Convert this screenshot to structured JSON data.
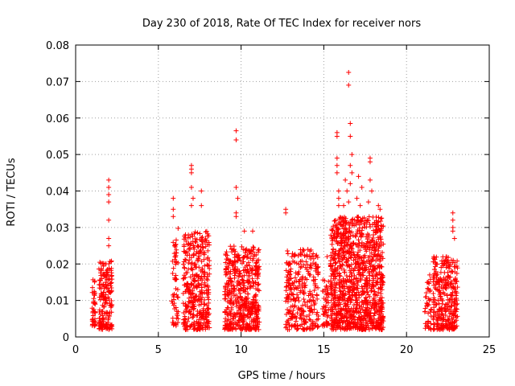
{
  "chart_data": {
    "type": "scatter",
    "title": "Day 230 of 2018, Rate Of TEC Index for receiver nors",
    "xlabel": "GPS time / hours",
    "ylabel": "ROTI / TECUs",
    "xlim": [
      0,
      25
    ],
    "ylim": [
      0,
      0.08
    ],
    "x_ticks": [
      0,
      5,
      10,
      15,
      20,
      25
    ],
    "x_tick_labels": [
      "0",
      "5",
      "10",
      "15",
      "20",
      "25"
    ],
    "y_ticks": [
      0,
      0.01,
      0.02,
      0.03,
      0.04,
      0.05,
      0.06,
      0.07,
      0.08
    ],
    "y_tick_labels": [
      "0",
      "0.01",
      "0.02",
      "0.03",
      "0.04",
      "0.05",
      "0.06",
      "0.07",
      "0.08"
    ],
    "grid": true,
    "legend": "none",
    "marker": "+",
    "color": "#ff0000",
    "clusters": [
      {
        "x_range": [
          1.0,
          1.2
        ],
        "y_range": [
          0.003,
          0.016
        ],
        "count": 40
      },
      {
        "x_range": [
          1.4,
          2.2
        ],
        "y_range": [
          0.002,
          0.021
        ],
        "count": 180
      },
      {
        "x_range": [
          5.8,
          6.2
        ],
        "y_range": [
          0.003,
          0.03
        ],
        "count": 60
      },
      {
        "x_range": [
          6.5,
          8.1
        ],
        "y_range": [
          0.002,
          0.029
        ],
        "count": 380
      },
      {
        "x_range": [
          9.0,
          11.1
        ],
        "y_range": [
          0.002,
          0.025
        ],
        "count": 520
      },
      {
        "x_range": [
          12.7,
          14.7
        ],
        "y_range": [
          0.002,
          0.024
        ],
        "count": 300
      },
      {
        "x_range": [
          14.9,
          15.3
        ],
        "y_range": [
          0.003,
          0.016
        ],
        "count": 50
      },
      {
        "x_range": [
          15.4,
          18.6
        ],
        "y_range": [
          0.002,
          0.033
        ],
        "count": 1100
      },
      {
        "x_range": [
          21.1,
          21.5
        ],
        "y_range": [
          0.002,
          0.016
        ],
        "count": 40
      },
      {
        "x_range": [
          21.6,
          23.1
        ],
        "y_range": [
          0.002,
          0.022
        ],
        "count": 320
      }
    ],
    "outliers": [
      [
        2.0,
        0.043
      ],
      [
        2.0,
        0.041
      ],
      [
        2.0,
        0.039
      ],
      [
        2.0,
        0.037
      ],
      [
        2.0,
        0.032
      ],
      [
        2.0,
        0.027
      ],
      [
        2.0,
        0.025
      ],
      [
        5.9,
        0.038
      ],
      [
        5.9,
        0.035
      ],
      [
        5.9,
        0.033
      ],
      [
        7.0,
        0.047
      ],
      [
        7.0,
        0.046
      ],
      [
        7.0,
        0.045
      ],
      [
        7.0,
        0.041
      ],
      [
        7.1,
        0.038
      ],
      [
        7.0,
        0.036
      ],
      [
        7.6,
        0.04
      ],
      [
        7.6,
        0.036
      ],
      [
        9.7,
        0.0565
      ],
      [
        9.7,
        0.054
      ],
      [
        9.7,
        0.041
      ],
      [
        9.8,
        0.038
      ],
      [
        9.7,
        0.034
      ],
      [
        9.7,
        0.033
      ],
      [
        10.2,
        0.029
      ],
      [
        10.7,
        0.029
      ],
      [
        12.7,
        0.035
      ],
      [
        12.7,
        0.034
      ],
      [
        15.2,
        0.022
      ],
      [
        15.8,
        0.056
      ],
      [
        15.8,
        0.055
      ],
      [
        15.8,
        0.049
      ],
      [
        15.8,
        0.047
      ],
      [
        15.8,
        0.045
      ],
      [
        15.9,
        0.04
      ],
      [
        15.9,
        0.038
      ],
      [
        15.9,
        0.036
      ],
      [
        16.5,
        0.0725
      ],
      [
        16.5,
        0.069
      ],
      [
        16.6,
        0.0585
      ],
      [
        16.6,
        0.055
      ],
      [
        16.7,
        0.05
      ],
      [
        16.6,
        0.047
      ],
      [
        16.7,
        0.045
      ],
      [
        16.6,
        0.042
      ],
      [
        17.1,
        0.044
      ],
      [
        17.3,
        0.041
      ],
      [
        17.0,
        0.038
      ],
      [
        17.2,
        0.036
      ],
      [
        17.8,
        0.049
      ],
      [
        17.8,
        0.048
      ],
      [
        17.8,
        0.043
      ],
      [
        17.9,
        0.04
      ],
      [
        17.7,
        0.037
      ],
      [
        18.3,
        0.036
      ],
      [
        18.4,
        0.035
      ],
      [
        16.3,
        0.043
      ],
      [
        16.4,
        0.04
      ],
      [
        16.5,
        0.037
      ],
      [
        16.2,
        0.036
      ],
      [
        22.8,
        0.034
      ],
      [
        22.8,
        0.032
      ],
      [
        22.8,
        0.03
      ],
      [
        22.8,
        0.029
      ],
      [
        22.9,
        0.027
      ],
      [
        21.8,
        0.02
      ],
      [
        21.4,
        0.017
      ]
    ]
  }
}
